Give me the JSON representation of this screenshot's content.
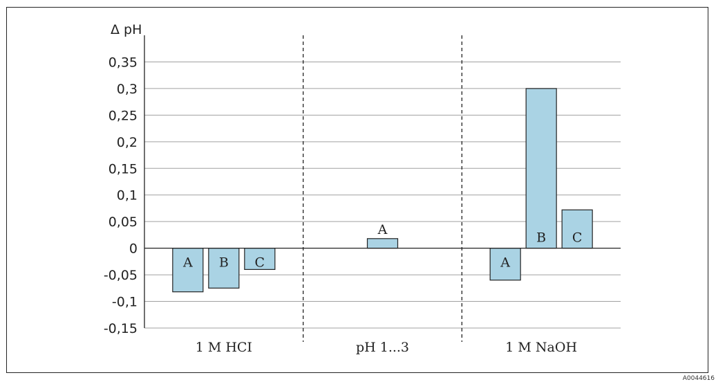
{
  "chart_data": {
    "type": "bar",
    "ylabel": "Δ pH",
    "ylim": [
      -0.15,
      0.4
    ],
    "yticks": [
      {
        "value": 0.35,
        "label": "0,35"
      },
      {
        "value": 0.3,
        "label": "0,3"
      },
      {
        "value": 0.25,
        "label": "0,25"
      },
      {
        "value": 0.2,
        "label": "0,2"
      },
      {
        "value": 0.15,
        "label": "0,15"
      },
      {
        "value": 0.1,
        "label": "0,1"
      },
      {
        "value": 0.05,
        "label": "0,05"
      },
      {
        "value": 0,
        "label": "0"
      },
      {
        "value": -0.05,
        "label": "-0,05"
      },
      {
        "value": -0.1,
        "label": "-0,1"
      },
      {
        "value": -0.15,
        "label": "-0,15"
      }
    ],
    "grid": true,
    "groups": [
      {
        "category": "1 M HCI",
        "bars": [
          {
            "label": "A",
            "value": -0.082
          },
          {
            "label": "B",
            "value": -0.075
          },
          {
            "label": "C",
            "value": -0.04
          }
        ]
      },
      {
        "category": "pH 1...3",
        "bars": [
          {
            "label": "A",
            "value": 0.018
          }
        ]
      },
      {
        "category": "1 M NaOH",
        "bars": [
          {
            "label": "A",
            "value": -0.06
          },
          {
            "label": "B",
            "value": 0.3
          },
          {
            "label": "C",
            "value": 0.072
          }
        ]
      }
    ],
    "colors": {
      "bar": "#aad3e4",
      "edge": "#222222",
      "grid": "#a0a0a0"
    }
  },
  "doc_id": "A0044616"
}
